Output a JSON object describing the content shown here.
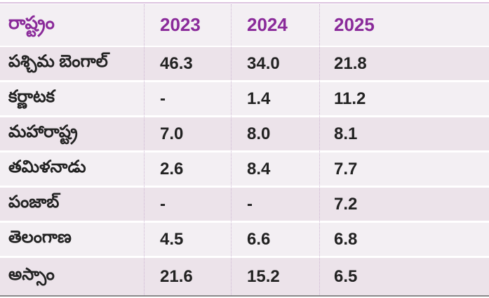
{
  "header": {
    "state": "రాష్ట్రం",
    "y2023": "2023",
    "y2024": "2024",
    "y2025": "2025"
  },
  "rows": [
    {
      "state": "పశ్చిమ బెంగాల్",
      "y2023": "46.3",
      "y2024": "34.0",
      "y2025": "21.8"
    },
    {
      "state": "కర్ణాటక",
      "y2023": "-",
      "y2024": "1.4",
      "y2025": "11.2"
    },
    {
      "state": "మహారాష్ట్ర",
      "y2023": "7.0",
      "y2024": "8.0",
      "y2025": "8.1"
    },
    {
      "state": "తమిళనాడు",
      "y2023": "2.6",
      "y2024": "8.4",
      "y2025": "7.7"
    },
    {
      "state": "పంజాబ్",
      "y2023": "-",
      "y2024": "-",
      "y2025": "7.2"
    },
    {
      "state": "తెలంగాణ",
      "y2023": "4.5",
      "y2024": "6.6",
      "y2025": "6.8"
    },
    {
      "state": "అస్సాం",
      "y2023": "21.6",
      "y2024": "15.2",
      "y2025": "6.5"
    }
  ],
  "colors": {
    "header_text": "#8a2a9a",
    "row_odd": "#f3eff3",
    "row_even": "#ece3ea"
  }
}
